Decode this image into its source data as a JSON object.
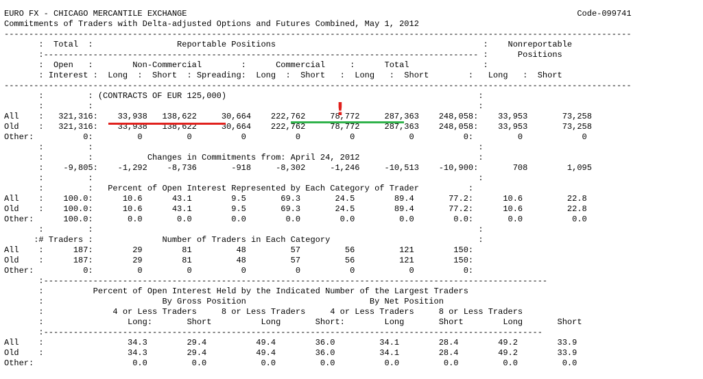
{
  "lines": [
    "EURO FX - CHICAGO MERCANTILE EXCHANGE                                                                               Code-099741",
    "Commitments of Traders with Delta-adjusted Options and Futures Combined, May 1, 2012",
    "-------------------------------------------------------------------------------------------------------------------------------",
    "       :  Total  :                 Reportable Positions                                          :    Nonreportable",
    "       :---------------------------------------------------------------------------------------- :      Positions",
    "       :  Open   :        Non-Commercial        :      Commercial     :      Total               :",
    "       : Interest :  Long  :  Short  : Spreading:  Long  :  Short   :  Long   :  Short        :   Long   :  Short",
    "-------------------------------------------------------------------------------------------------------------------------------",
    "       :         : (CONTRACTS OF EUR 125,000)                                                   :",
    "       :         :                                                                              :",
    "All    :   321,316:    33,938   138,622     30,664    222,762     78,772     287,363    248,058:    33,953       73,258",
    "Old    :   321,316:    33,938   138,622     30,664    222,762     78,772     287,363    248,058:    33,953       73,258",
    "Other:          0:         0         0          0          0          0           0          0:         0            0",
    "       :         :                                                                              :",
    "       :         :           Changes in Commitments from: April 24, 2012                        :",
    "       :    -9,805:    -1,292    -8,736       -918     -8,302     -1,246     -10,513    -10,900:       708        1,095",
    "       :         :                                                                              :",
    "       :         :   Percent of Open Interest Represented by Each Category of Trader          :",
    "All    :    100.0:      10.6      43.1        9.5       69.3       24.5        89.4       77.2:      10.6         22.8",
    "Old    :    100.0:      10.6      43.1        9.5       69.3       24.5        89.4       77.2:      10.6         22.8",
    "Other:      100.0:       0.0       0.0        0.0        0.0        0.0         0.0        0.0:       0.0          0.0",
    "       :         :                                                                              :",
    "      :# Traders :              Number of Traders in Each Category                              :",
    "All    :      187:        29        81         48         57         56         121        150:",
    "Old    :      187:        29        81         48         57         56         121        150:",
    "Other:          0:         0         0          0          0          0           0          0:",
    "       :------------------------------------------------------------------------------------------------------",
    "       :          Percent of Open Interest Held by the Indicated Number of the Largest Traders",
    "       :                        By Gross Position                         By Net Position",
    "       :              4 or Less Traders     8 or Less Traders     4 or Less Traders     8 or Less Traders",
    "       :                 Long:       Short          Long       Short:        Long       Short        Long       Short",
    "       :-----------------------------------------------------------------------------------------------------",
    "All    :                 34.3        29.4          49.4        36.0         34.1        28.4        49.2        33.9",
    "Old    :                 34.3        29.4          49.4        36.0         34.1        28.4        49.2        33.9",
    "Other:                    0.0         0.0           0.0         0.0          0.0         0.0         0.0         0.0"
  ],
  "annotations": {
    "exclamation": "!",
    "red_underline_color": "#e0201c",
    "green_underline_color": "#2fb24a",
    "exclamation_color": "#e0201c"
  }
}
